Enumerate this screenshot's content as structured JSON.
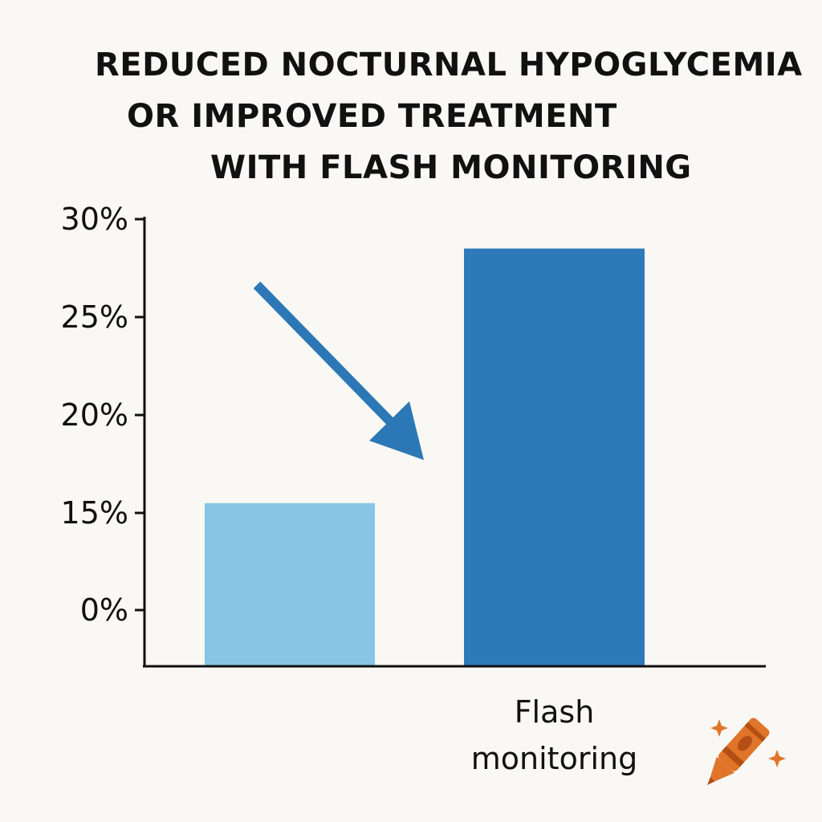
{
  "title_lines": [
    "REDUCED NOCTURNAL HYPOGLYCEMIA",
    "OR IMPROVED TREATMENT",
    "WITH FLASH MONITORING"
  ],
  "chart_data": {
    "type": "bar",
    "title": "REDUCED NOCTURNAL HYPOGLYCEMIA OR IMPROVED TREATMENT WITH FLASH MONITORING",
    "categories": [
      "",
      "Flash monitoring"
    ],
    "category_label_lines": [
      [],
      [
        "Flash",
        "monitoring"
      ]
    ],
    "values": [
      15.5,
      28.5
    ],
    "y_ticks": [
      {
        "value": 0,
        "label": "0%"
      },
      {
        "value": 15,
        "label": "15%"
      },
      {
        "value": 20,
        "label": "20%"
      },
      {
        "value": 25,
        "label": "25%"
      },
      {
        "value": 30,
        "label": "30%"
      }
    ],
    "ylim": [
      0,
      30
    ],
    "grid": false,
    "legend": "none",
    "colors": {
      "bars": [
        "#86c5e5",
        "#2e7ab8"
      ],
      "arrow": "#2c78b6",
      "axis": "#111111"
    },
    "annotation": "downward arrow pointing to second bar"
  },
  "decoration": {
    "icon": "crayon-icon",
    "colors": {
      "crayon": "#e0752a",
      "crayon_dark": "#b34f14",
      "sparkle": "#e0752a"
    }
  }
}
